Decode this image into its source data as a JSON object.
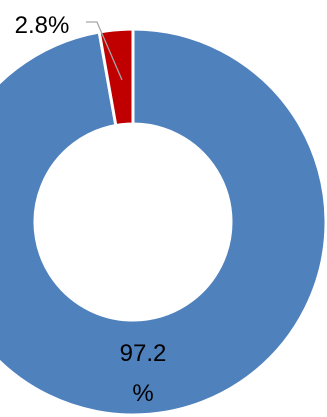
{
  "chart_data": {
    "type": "pie",
    "donut": true,
    "slices": [
      {
        "value": 97.2,
        "label_line1": "97.2",
        "label_line2": "%",
        "color": "#4F81BD"
      },
      {
        "value": 2.8,
        "label": "2.8%",
        "color": "#C00000"
      }
    ],
    "title": "",
    "legend": "none",
    "separator_color": "#ffffff",
    "leader_line_color": "#A6A6A6"
  }
}
